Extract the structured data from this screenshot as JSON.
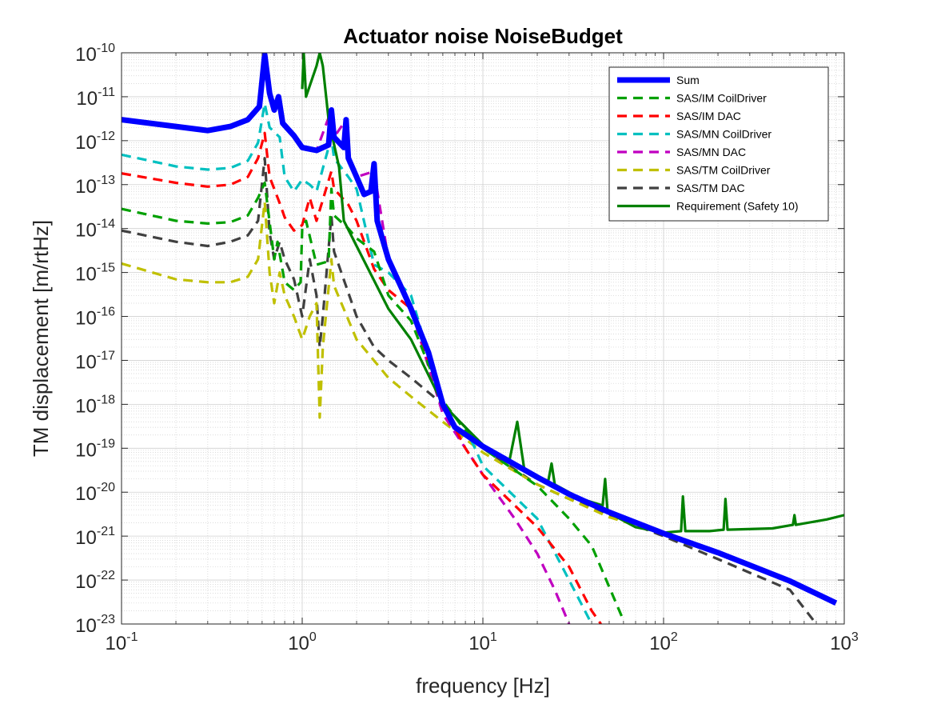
{
  "chart_data": {
    "type": "line",
    "title": "Actuator noise NoiseBudget",
    "xlabel": "frequency [Hz]",
    "ylabel": "TM displacement [m/rtHz]",
    "x_scale": "log",
    "y_scale": "log",
    "xlim": [
      0.1,
      1000
    ],
    "ylim": [
      1e-23,
      1e-10
    ],
    "grid": true,
    "minor_grid": true,
    "legend_position": "top-right",
    "x_ticks": [
      {
        "value": 0.1,
        "base": "10",
        "exp": "-1"
      },
      {
        "value": 1,
        "base": "10",
        "exp": "0"
      },
      {
        "value": 10,
        "base": "10",
        "exp": "1"
      },
      {
        "value": 100,
        "base": "10",
        "exp": "2"
      },
      {
        "value": 1000,
        "base": "10",
        "exp": "3"
      }
    ],
    "y_ticks": [
      {
        "value": 1e-10,
        "base": "10",
        "exp": "-10"
      },
      {
        "value": 1e-11,
        "base": "10",
        "exp": "-11"
      },
      {
        "value": 1e-12,
        "base": "10",
        "exp": "-12"
      },
      {
        "value": 1e-13,
        "base": "10",
        "exp": "-13"
      },
      {
        "value": 1e-14,
        "base": "10",
        "exp": "-14"
      },
      {
        "value": 1e-15,
        "base": "10",
        "exp": "-15"
      },
      {
        "value": 1e-16,
        "base": "10",
        "exp": "-16"
      },
      {
        "value": 1e-17,
        "base": "10",
        "exp": "-17"
      },
      {
        "value": 1e-18,
        "base": "10",
        "exp": "-18"
      },
      {
        "value": 1e-19,
        "base": "10",
        "exp": "-19"
      },
      {
        "value": 1e-20,
        "base": "10",
        "exp": "-20"
      },
      {
        "value": 1e-21,
        "base": "10",
        "exp": "-21"
      },
      {
        "value": 1e-22,
        "base": "10",
        "exp": "-22"
      },
      {
        "value": 1e-23,
        "base": "10",
        "exp": "-23"
      }
    ],
    "series": [
      {
        "name": "Sum",
        "color": "#0000ff",
        "style": "solid-thick",
        "points": [
          [
            0.1,
            3e-12
          ],
          [
            0.2,
            2.1e-12
          ],
          [
            0.3,
            1.7e-12
          ],
          [
            0.4,
            2.1e-12
          ],
          [
            0.5,
            3e-12
          ],
          [
            0.58,
            6e-12
          ],
          [
            0.62,
            9e-11
          ],
          [
            0.66,
            1.2e-11
          ],
          [
            0.7,
            5e-12
          ],
          [
            0.74,
            1e-11
          ],
          [
            0.78,
            2.5e-12
          ],
          [
            0.9,
            1.3e-12
          ],
          [
            1.0,
            7e-13
          ],
          [
            1.2,
            6e-13
          ],
          [
            1.4,
            8e-13
          ],
          [
            1.45,
            5e-12
          ],
          [
            1.5,
            1.2e-12
          ],
          [
            1.7,
            7e-13
          ],
          [
            1.75,
            3e-12
          ],
          [
            1.8,
            4e-13
          ],
          [
            2.0,
            1.5e-13
          ],
          [
            2.2,
            6e-14
          ],
          [
            2.4,
            7e-14
          ],
          [
            2.5,
            3e-13
          ],
          [
            2.6,
            1.5e-14
          ],
          [
            3.0,
            2e-15
          ],
          [
            3.5,
            5e-16
          ],
          [
            4.0,
            1.5e-16
          ],
          [
            5.0,
            1.5e-17
          ],
          [
            6.0,
            1e-18
          ],
          [
            7.0,
            3e-19
          ],
          [
            10,
            1.1e-19
          ],
          [
            20,
            2.2e-20
          ],
          [
            30,
            9e-21
          ],
          [
            50,
            3.5e-21
          ],
          [
            100,
            1.15e-21
          ],
          [
            200,
            4.2e-22
          ],
          [
            500,
            9.5e-23
          ],
          [
            900,
            3e-23
          ]
        ]
      },
      {
        "name": "SAS/IM CoilDriver",
        "color": "#00a000",
        "style": "dashed",
        "points": [
          [
            0.1,
            2.8e-14
          ],
          [
            0.2,
            1.5e-14
          ],
          [
            0.3,
            1.3e-14
          ],
          [
            0.4,
            1.4e-14
          ],
          [
            0.5,
            2e-14
          ],
          [
            0.57,
            5e-14
          ],
          [
            0.62,
            1.1e-13
          ],
          [
            0.7,
            2e-15
          ],
          [
            0.73,
            5e-15
          ],
          [
            0.8,
            6e-16
          ],
          [
            0.9,
            4e-16
          ],
          [
            0.98,
            6e-16
          ],
          [
            1.0,
            1e-14
          ],
          [
            1.05,
            1.5e-14
          ],
          [
            1.2,
            1.5e-15
          ],
          [
            1.4,
            1.8e-15
          ],
          [
            1.45,
            8e-14
          ],
          [
            1.5,
            2e-14
          ],
          [
            1.8,
            1e-14
          ],
          [
            2.0,
            6e-15
          ],
          [
            2.5,
            3e-15
          ],
          [
            3,
            3e-16
          ],
          [
            4,
            8e-17
          ],
          [
            6,
            1.2e-18
          ],
          [
            8,
            2.5e-19
          ],
          [
            10,
            1e-19
          ],
          [
            20,
            1.4e-20
          ],
          [
            30,
            2.5e-21
          ],
          [
            40,
            6e-22
          ],
          [
            60,
            1.2e-23
          ]
        ]
      },
      {
        "name": "SAS/IM DAC",
        "color": "#ff0000",
        "style": "dashed",
        "points": [
          [
            0.1,
            1.8e-13
          ],
          [
            0.2,
            1.1e-13
          ],
          [
            0.3,
            9e-14
          ],
          [
            0.4,
            1e-13
          ],
          [
            0.5,
            1.5e-13
          ],
          [
            0.57,
            4e-13
          ],
          [
            0.62,
            1.5e-12
          ],
          [
            0.66,
            1.5e-13
          ],
          [
            0.75,
            3.8e-14
          ],
          [
            0.8,
            1.8e-14
          ],
          [
            0.9,
            9e-15
          ],
          [
            1.0,
            1.2e-14
          ],
          [
            1.1,
            5e-14
          ],
          [
            1.2,
            1.5e-14
          ],
          [
            1.45,
            2e-13
          ],
          [
            1.5,
            8e-14
          ],
          [
            1.8,
            3.5e-14
          ],
          [
            2.0,
            1.5e-14
          ],
          [
            2.5,
            1.2e-15
          ],
          [
            3,
            4e-16
          ],
          [
            4,
            1.5e-16
          ],
          [
            6,
            1e-18
          ],
          [
            8,
            1e-19
          ],
          [
            10,
            2.5e-20
          ],
          [
            20,
            1.6e-21
          ],
          [
            30,
            2e-22
          ],
          [
            40,
            2e-23
          ],
          [
            45,
            1e-23
          ]
        ]
      },
      {
        "name": "SAS/MN CoilDriver",
        "color": "#00c0c0",
        "style": "dashed",
        "points": [
          [
            0.1,
            4.8e-13
          ],
          [
            0.2,
            2.6e-13
          ],
          [
            0.3,
            2.2e-13
          ],
          [
            0.4,
            2.4e-13
          ],
          [
            0.5,
            3.5e-13
          ],
          [
            0.57,
            9e-13
          ],
          [
            0.62,
            7e-12
          ],
          [
            0.66,
            2e-12
          ],
          [
            0.75,
            1.2e-12
          ],
          [
            0.8,
            1.5e-13
          ],
          [
            0.9,
            7e-14
          ],
          [
            1.0,
            1.3e-13
          ],
          [
            1.1,
            1e-13
          ],
          [
            1.2,
            7e-14
          ],
          [
            1.45,
            1.2e-12
          ],
          [
            1.5,
            4e-13
          ],
          [
            1.8,
            1.5e-13
          ],
          [
            2.0,
            8e-14
          ],
          [
            2.5,
            1.5e-15
          ],
          [
            3,
            1e-15
          ],
          [
            4,
            3e-16
          ],
          [
            6,
            1e-18
          ],
          [
            8,
            3e-19
          ],
          [
            10,
            4e-20
          ],
          [
            20,
            2.5e-21
          ],
          [
            30,
            1e-22
          ],
          [
            40,
            1e-23
          ]
        ]
      },
      {
        "name": "SAS/MN DAC",
        "color": "#c000c0",
        "style": "dashed",
        "points": [
          [
            0.1,
            3e-12
          ],
          [
            0.2,
            2.1e-12
          ],
          [
            0.3,
            1.7e-12
          ],
          [
            0.4,
            2e-12
          ],
          [
            0.5,
            3e-12
          ],
          [
            0.58,
            6e-12
          ],
          [
            0.62,
            9e-11
          ],
          [
            0.66,
            1e-11
          ],
          [
            0.7,
            5e-12
          ],
          [
            0.74,
            1e-11
          ],
          [
            0.78,
            2.5e-12
          ],
          [
            0.9,
            1.3e-12
          ],
          [
            1.0,
            7e-13
          ],
          [
            1.2,
            6e-13
          ],
          [
            1.45,
            5e-12
          ],
          [
            1.5,
            1.2e-12
          ],
          [
            1.75,
            3e-12
          ],
          [
            1.8,
            4e-13
          ],
          [
            2.0,
            1.5e-13
          ],
          [
            2.5,
            2e-13
          ],
          [
            3,
            2e-15
          ],
          [
            4,
            1.5e-16
          ],
          [
            6,
            6e-19
          ],
          [
            8,
            1e-19
          ],
          [
            10,
            2.5e-20
          ],
          [
            15,
            2.5e-21
          ],
          [
            20,
            4e-22
          ],
          [
            25,
            6e-23
          ],
          [
            30,
            1e-23
          ]
        ]
      },
      {
        "name": "SAS/TM CoilDriver",
        "color": "#c0c000",
        "style": "dashed",
        "points": [
          [
            0.1,
            1.6e-15
          ],
          [
            0.2,
            7e-16
          ],
          [
            0.3,
            6e-16
          ],
          [
            0.4,
            6e-16
          ],
          [
            0.5,
            8e-16
          ],
          [
            0.57,
            2e-15
          ],
          [
            0.62,
            4e-14
          ],
          [
            0.66,
            1e-15
          ],
          [
            0.7,
            2e-16
          ],
          [
            0.75,
            1e-15
          ],
          [
            0.8,
            3e-16
          ],
          [
            0.9,
            1e-16
          ],
          [
            1.0,
            3e-17
          ],
          [
            1.1,
            1e-16
          ],
          [
            1.2,
            2e-16
          ],
          [
            1.25,
            5e-19
          ],
          [
            1.3,
            2e-17
          ],
          [
            1.45,
            2e-15
          ],
          [
            1.5,
            5e-16
          ],
          [
            2.0,
            3e-17
          ],
          [
            3,
            4e-18
          ],
          [
            4,
            1.5e-18
          ],
          [
            6,
            4e-19
          ],
          [
            10,
            8e-20
          ],
          [
            20,
            1.5e-20
          ],
          [
            50,
            2.7e-21
          ],
          [
            100,
            1.15e-21
          ],
          [
            200,
            4e-22
          ],
          [
            500,
            9e-23
          ],
          [
            900,
            3e-23
          ]
        ]
      },
      {
        "name": "SAS/TM DAC",
        "color": "#404040",
        "style": "dashed",
        "points": [
          [
            0.1,
            9e-15
          ],
          [
            0.2,
            5e-15
          ],
          [
            0.3,
            4e-15
          ],
          [
            0.4,
            5e-15
          ],
          [
            0.5,
            7e-15
          ],
          [
            0.57,
            1.5e-14
          ],
          [
            0.62,
            4e-13
          ],
          [
            0.66,
            8e-15
          ],
          [
            0.7,
            2e-15
          ],
          [
            0.75,
            5e-15
          ],
          [
            0.8,
            2e-15
          ],
          [
            0.9,
            7e-16
          ],
          [
            1.0,
            1e-16
          ],
          [
            1.1,
            2e-15
          ],
          [
            1.2,
            3e-16
          ],
          [
            1.25,
            2e-17
          ],
          [
            1.3,
            1e-16
          ],
          [
            1.45,
            2e-14
          ],
          [
            1.5,
            3e-15
          ],
          [
            2.0,
            1e-16
          ],
          [
            2.5,
            2e-17
          ],
          [
            3,
            1e-17
          ],
          [
            4,
            4e-18
          ],
          [
            6,
            1e-18
          ],
          [
            8,
            3e-19
          ],
          [
            10,
            1e-19
          ],
          [
            20,
            1.5e-20
          ],
          [
            30,
            7e-21
          ],
          [
            50,
            3e-21
          ],
          [
            100,
            1e-21
          ],
          [
            200,
            3e-22
          ],
          [
            500,
            6e-23
          ],
          [
            700,
            1e-23
          ]
        ]
      },
      {
        "name": "Requirement (Safety 10)",
        "color": "#008000",
        "style": "solid",
        "points": [
          [
            1.0,
            1.5e-11
          ],
          [
            1.02,
            1e-10
          ],
          [
            1.05,
            1e-11
          ],
          [
            1.2,
            5e-11
          ],
          [
            1.25,
            1e-10
          ],
          [
            1.3,
            5e-11
          ],
          [
            1.4,
            3e-12
          ],
          [
            1.6,
            2.5e-13
          ],
          [
            1.7,
            1.5e-14
          ],
          [
            2.0,
            4e-15
          ],
          [
            3.0,
            1.5e-16
          ],
          [
            4.0,
            3e-17
          ],
          [
            6.0,
            1e-18
          ],
          [
            8.0,
            3e-19
          ],
          [
            10,
            1.2e-19
          ],
          [
            14,
            5e-20
          ],
          [
            15.5,
            4e-19
          ],
          [
            17,
            3e-20
          ],
          [
            23,
            1.8e-20
          ],
          [
            24,
            4.5e-20
          ],
          [
            25,
            1.5e-20
          ],
          [
            35,
            7e-21
          ],
          [
            46,
            5e-21
          ],
          [
            47.5,
            2e-20
          ],
          [
            49,
            3.5e-21
          ],
          [
            70,
            1.6e-21
          ],
          [
            100,
            1.2e-21
          ],
          [
            125,
            1.3e-21
          ],
          [
            128,
            8e-21
          ],
          [
            132,
            1.3e-21
          ],
          [
            180,
            1.3e-21
          ],
          [
            215,
            1.4e-21
          ],
          [
            220,
            7e-21
          ],
          [
            226,
            1.4e-21
          ],
          [
            400,
            1.5e-21
          ],
          [
            520,
            1.8e-21
          ],
          [
            530,
            3e-21
          ],
          [
            540,
            1.8e-21
          ],
          [
            800,
            2.4e-21
          ],
          [
            1000,
            3e-21
          ]
        ]
      }
    ]
  }
}
